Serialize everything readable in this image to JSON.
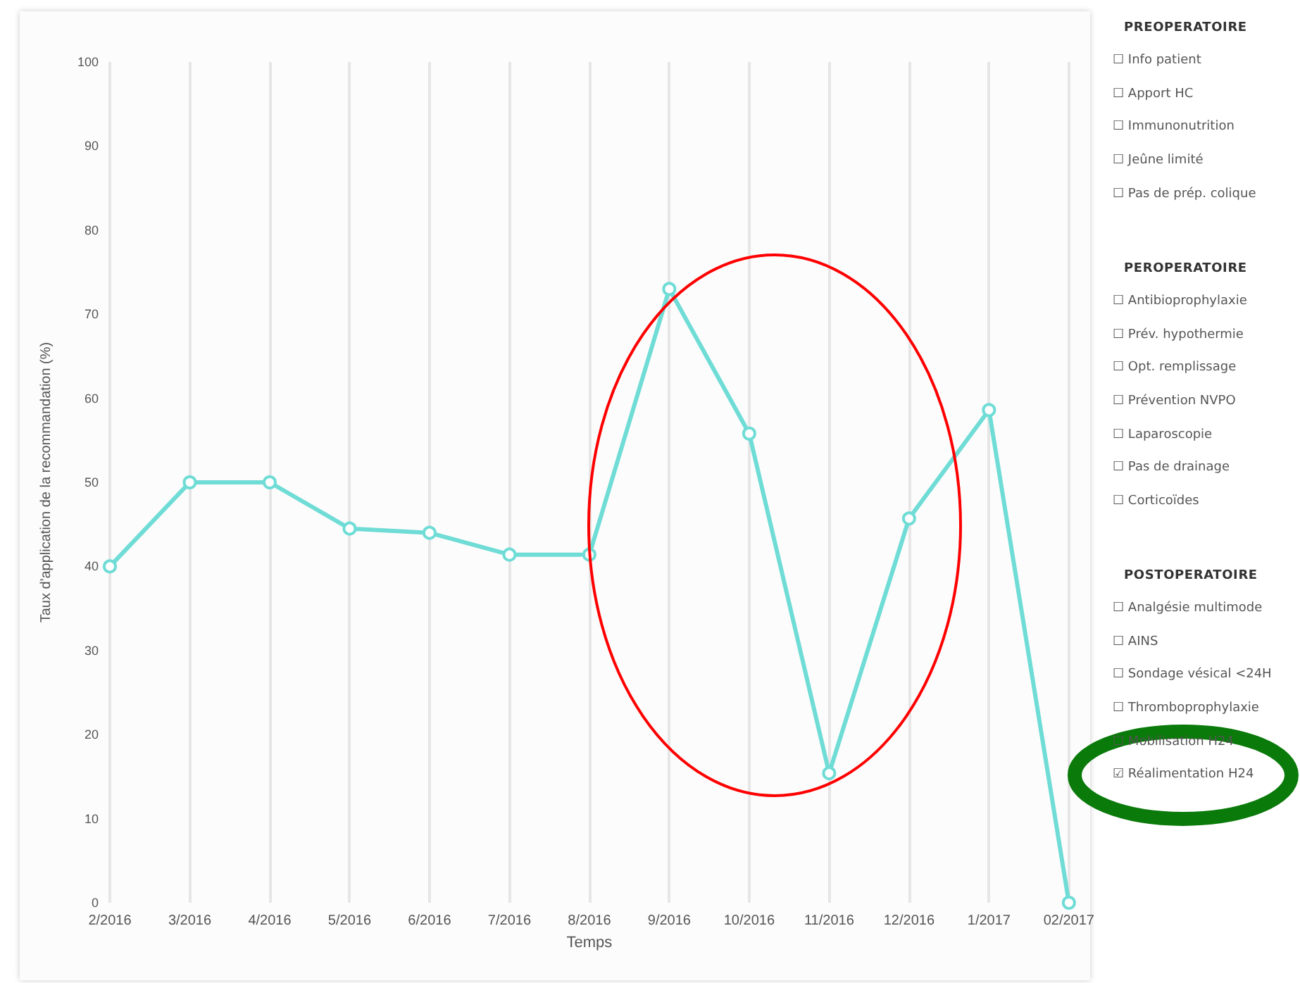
{
  "chart_data": [
    {
      "type": "line",
      "xlabel": "Temps",
      "ylabel": "Taux d'application de la recommandation (%)",
      "categories": [
        "2/2016",
        "3/2016",
        "4/2016",
        "5/2016",
        "6/2016",
        "7/2016",
        "8/2016",
        "9/2016",
        "10/2016",
        "11/2016",
        "12/2016",
        "1/2017",
        "02/2017"
      ],
      "series": [
        {
          "color": "#6fdcd6",
          "values": [
            40,
            50,
            50,
            44.5,
            44,
            41.4,
            41.4,
            73,
            55.8,
            15.4,
            45.7,
            58.6,
            0
          ]
        }
      ],
      "ylim": [
        0,
        100
      ],
      "yticks": [
        0,
        10,
        20,
        30,
        40,
        50,
        60,
        70,
        80,
        90,
        100
      ],
      "grid": "x",
      "marker": "circle",
      "line_style": "solid"
    },
    {
      "type": "other",
      "title": "PREOPERATOIRE",
      "annotations": [
        "☐ Info patient",
        "☐ Apport HC",
        "☐ Immunonutrition",
        "☐ Jeûne limité",
        "☐ Pas de prép. colique"
      ]
    },
    {
      "type": "other",
      "title": "PEROPERATOIRE",
      "annotations": [
        "☐ Antibioprophylaxie",
        "☐ Prév. hypothermie",
        "☐ Opt. remplissage",
        "☐ Prévention NVPO",
        "☐ Laparoscopie",
        "☐ Pas de drainage",
        "☐ Corticoïdes"
      ]
    },
    {
      "type": "other",
      "title": "POSTOPERATOIRE",
      "annotations": [
        "☐ Analgésie multimode",
        "☐ AINS",
        "☐ Sondage vésical <24H",
        "☐ Thromboprophylaxie",
        "☐ Mobilisation H24",
        "☑ Réalimentation H24"
      ]
    }
  ]
}
